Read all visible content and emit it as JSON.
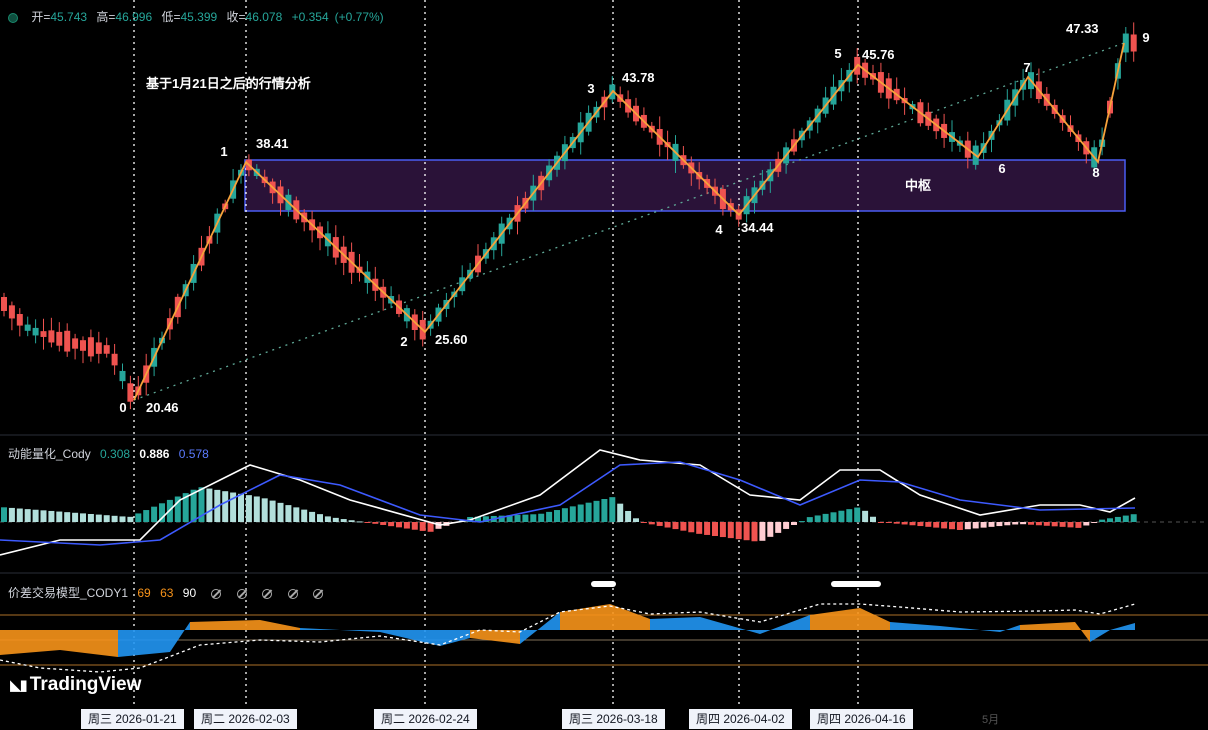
{
  "ohlc": {
    "open_label": "开=",
    "open": "45.743",
    "high_label": "高=",
    "high": "46.996",
    "low_label": "低=",
    "low": "45.399",
    "close_label": "收=",
    "close": "46.078",
    "change": "+0.354",
    "change_pct": "(+0.77%)"
  },
  "note": "基于1月21日之后的行情分析",
  "zs_label": "中枢",
  "panel1": {
    "name": "动能量化_Cody",
    "v1": "0.308",
    "v2": "0.886",
    "v3": "0.578",
    "colors": [
      "#26a69a",
      "#ffffff",
      "#5b7bff"
    ]
  },
  "panel2": {
    "name": "价差交易模型_CODY1",
    "v1": "69",
    "v2": "63",
    "v3": "90",
    "colors": [
      "#f7931a",
      "#f7931a",
      "#ffffff"
    ]
  },
  "dates": [
    "周三 2026-01-21",
    "周二 2026-02-03",
    "周二 2026-02-24",
    "周三 2026-03-18",
    "周四 2026-04-02",
    "周四 2026-04-16"
  ],
  "axis_fragment": "5月",
  "watermark": "TradingView",
  "colors": {
    "up": "#26a69a",
    "down": "#ef5350",
    "zigzag": "#f7a23b",
    "zs_border": "#4a5cf2",
    "zs_fill": "#2a1238"
  },
  "chart_data": {
    "type": "candlestick",
    "pivots": [
      {
        "label": "0",
        "price": 20.46
      },
      {
        "label": "1",
        "price": 38.41
      },
      {
        "label": "2",
        "price": 25.6
      },
      {
        "label": "3",
        "price": 43.78
      },
      {
        "label": "4",
        "price": 34.44
      },
      {
        "label": "5",
        "price": 45.76
      },
      {
        "label": "6",
        "price": null
      },
      {
        "label": "7",
        "price": null
      },
      {
        "label": "8",
        "price": null
      },
      {
        "label": "9",
        "price": null
      }
    ],
    "peak_label": "47.33"
  }
}
